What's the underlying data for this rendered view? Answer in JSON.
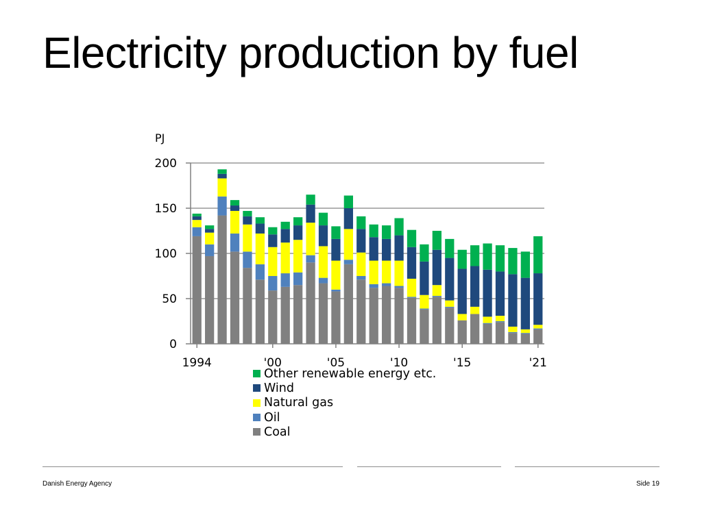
{
  "slide": {
    "title": "Electricity production by fuel"
  },
  "footer": {
    "left": "Danish Energy Agency",
    "right": "Side 19"
  },
  "chart_data": {
    "type": "bar",
    "stacked": true,
    "unit_label": "PJ",
    "ylim": [
      0,
      200
    ],
    "yticks": [
      0,
      50,
      100,
      150,
      200
    ],
    "grid": true,
    "legend_position": "bottom",
    "x": [
      1994,
      1995,
      1996,
      1997,
      1998,
      1999,
      2000,
      2001,
      2002,
      2003,
      2004,
      2005,
      2006,
      2007,
      2008,
      2009,
      2010,
      2011,
      2012,
      2013,
      2014,
      2015,
      2016,
      2017,
      2018,
      2019,
      2020,
      2021
    ],
    "x_tick_labels": [
      {
        "x": 1994,
        "label": "1994"
      },
      {
        "x": 2000,
        "label": "'00"
      },
      {
        "x": 2005,
        "label": "'05"
      },
      {
        "x": 2010,
        "label": "'10"
      },
      {
        "x": 2015,
        "label": "'15"
      },
      {
        "x": 2021,
        "label": "'21"
      }
    ],
    "series": [
      {
        "name": "Coal",
        "color": "#808080",
        "values": [
          119,
          97,
          142,
          102,
          84,
          71,
          59,
          63,
          65,
          90,
          67,
          58,
          88,
          71,
          62,
          64,
          62,
          51,
          38,
          52,
          40,
          26,
          33,
          22,
          24,
          12,
          11,
          16
        ]
      },
      {
        "name": "Oil",
        "color": "#4f81bd",
        "values": [
          10,
          13,
          21,
          20,
          18,
          17,
          16,
          15,
          14,
          8,
          6,
          2,
          5,
          4,
          4,
          3,
          2,
          1,
          1,
          1,
          1,
          0,
          0,
          1,
          1,
          1,
          1,
          1
        ]
      },
      {
        "name": "Natural gas",
        "color": "#ffff00",
        "values": [
          8,
          13,
          20,
          25,
          30,
          34,
          32,
          34,
          36,
          36,
          35,
          32,
          34,
          26,
          26,
          25,
          28,
          20,
          15,
          12,
          7,
          7,
          8,
          7,
          6,
          6,
          4,
          4
        ]
      },
      {
        "name": "Wind",
        "color": "#1f497d",
        "values": [
          4,
          4,
          5,
          6,
          9,
          11,
          14,
          15,
          16,
          20,
          23,
          24,
          23,
          26,
          26,
          24,
          28,
          35,
          37,
          39,
          47,
          50,
          45,
          52,
          49,
          58,
          57,
          57
        ]
      },
      {
        "name": "Other renewable energy etc.",
        "color": "#00b050",
        "values": [
          3,
          4,
          5,
          6,
          6,
          7,
          8,
          8,
          9,
          11,
          14,
          14,
          14,
          14,
          14,
          15,
          19,
          19,
          19,
          21,
          21,
          21,
          23,
          29,
          29,
          29,
          29,
          41
        ]
      }
    ],
    "legend_order": [
      "Other renewable energy etc.",
      "Wind",
      "Natural gas",
      "Oil",
      "Coal"
    ]
  }
}
